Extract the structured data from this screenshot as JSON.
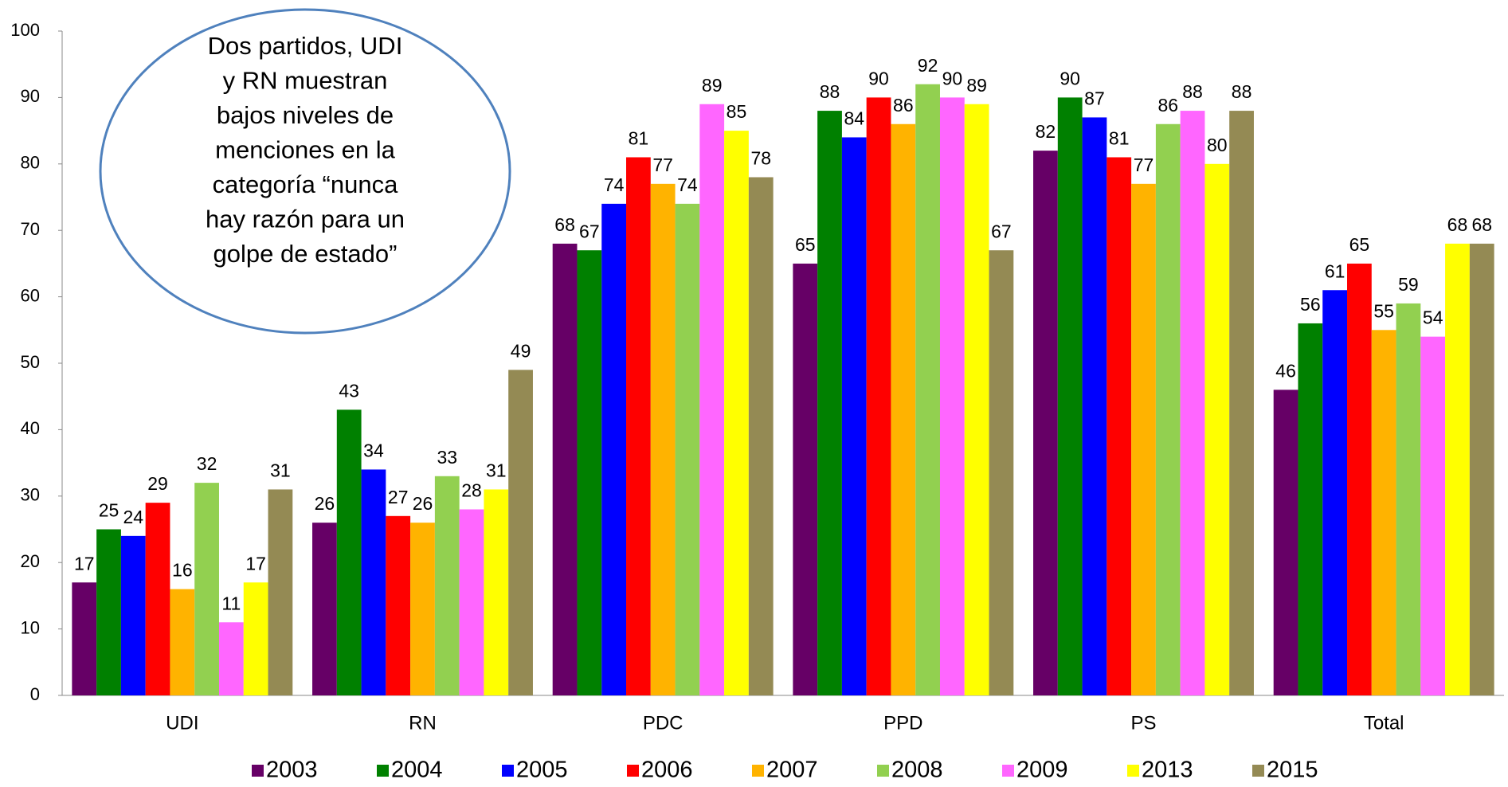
{
  "chart_data": {
    "type": "bar",
    "categories": [
      "UDI",
      "RN",
      "PDC",
      "PPD",
      "PS",
      "Total"
    ],
    "series": [
      {
        "name": "2003",
        "color": "#660066",
        "values": [
          17,
          26,
          68,
          65,
          82,
          46
        ]
      },
      {
        "name": "2004",
        "color": "#008000",
        "values": [
          25,
          43,
          67,
          88,
          90,
          56
        ]
      },
      {
        "name": "2005",
        "color": "#0000ff",
        "values": [
          24,
          34,
          74,
          84,
          87,
          61
        ]
      },
      {
        "name": "2006",
        "color": "#ff0000",
        "values": [
          29,
          27,
          81,
          90,
          81,
          65
        ]
      },
      {
        "name": "2007",
        "color": "#ffb300",
        "values": [
          16,
          26,
          77,
          86,
          77,
          55
        ]
      },
      {
        "name": "2008",
        "color": "#92d050",
        "values": [
          32,
          33,
          74,
          92,
          86,
          59
        ]
      },
      {
        "name": "2009",
        "color": "#ff66ff",
        "values": [
          11,
          28,
          89,
          90,
          88,
          54
        ]
      },
      {
        "name": "2013",
        "color": "#ffff00",
        "values": [
          17,
          31,
          85,
          89,
          80,
          68
        ]
      },
      {
        "name": "2015",
        "color": "#948a54",
        "values": [
          31,
          49,
          78,
          67,
          88,
          68
        ]
      }
    ],
    "ylim": [
      0,
      100
    ],
    "yticks": [
      0,
      10,
      20,
      30,
      40,
      50,
      60,
      70,
      80,
      90,
      100
    ],
    "legend": "bottom",
    "annotation": [
      "Dos partidos, UDI",
      "y RN muestran",
      "bajos niveles de",
      "menciones en la",
      "categoría “nunca",
      "hay razón para un",
      "golpe de estado”"
    ]
  }
}
